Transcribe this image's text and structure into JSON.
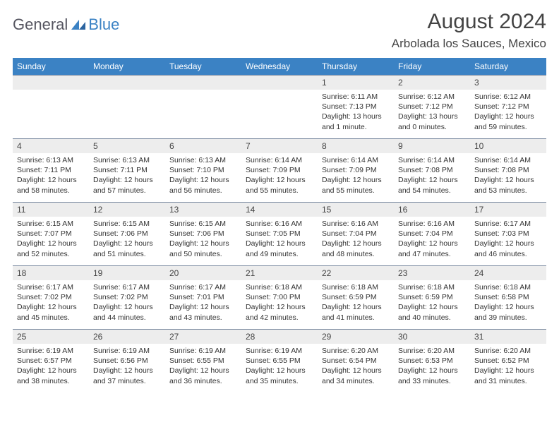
{
  "brand": {
    "part1": "General",
    "part2": "Blue"
  },
  "title": "August 2024",
  "location": "Arbolada los Sauces, Mexico",
  "colors": {
    "header_bg": "#3b82c4",
    "header_fg": "#ffffff",
    "daynum_bg": "#ededed",
    "cell_border": "#7a8aa0",
    "text": "#333333",
    "logo_gray": "#555560",
    "logo_blue": "#3b82c4"
  },
  "day_names": [
    "Sunday",
    "Monday",
    "Tuesday",
    "Wednesday",
    "Thursday",
    "Friday",
    "Saturday"
  ],
  "weeks": [
    [
      {
        "day": "",
        "lines": []
      },
      {
        "day": "",
        "lines": []
      },
      {
        "day": "",
        "lines": []
      },
      {
        "day": "",
        "lines": []
      },
      {
        "day": "1",
        "lines": [
          "Sunrise: 6:11 AM",
          "Sunset: 7:13 PM",
          "Daylight: 13 hours and 1 minute."
        ]
      },
      {
        "day": "2",
        "lines": [
          "Sunrise: 6:12 AM",
          "Sunset: 7:12 PM",
          "Daylight: 13 hours and 0 minutes."
        ]
      },
      {
        "day": "3",
        "lines": [
          "Sunrise: 6:12 AM",
          "Sunset: 7:12 PM",
          "Daylight: 12 hours and 59 minutes."
        ]
      }
    ],
    [
      {
        "day": "4",
        "lines": [
          "Sunrise: 6:13 AM",
          "Sunset: 7:11 PM",
          "Daylight: 12 hours and 58 minutes."
        ]
      },
      {
        "day": "5",
        "lines": [
          "Sunrise: 6:13 AM",
          "Sunset: 7:11 PM",
          "Daylight: 12 hours and 57 minutes."
        ]
      },
      {
        "day": "6",
        "lines": [
          "Sunrise: 6:13 AM",
          "Sunset: 7:10 PM",
          "Daylight: 12 hours and 56 minutes."
        ]
      },
      {
        "day": "7",
        "lines": [
          "Sunrise: 6:14 AM",
          "Sunset: 7:09 PM",
          "Daylight: 12 hours and 55 minutes."
        ]
      },
      {
        "day": "8",
        "lines": [
          "Sunrise: 6:14 AM",
          "Sunset: 7:09 PM",
          "Daylight: 12 hours and 55 minutes."
        ]
      },
      {
        "day": "9",
        "lines": [
          "Sunrise: 6:14 AM",
          "Sunset: 7:08 PM",
          "Daylight: 12 hours and 54 minutes."
        ]
      },
      {
        "day": "10",
        "lines": [
          "Sunrise: 6:14 AM",
          "Sunset: 7:08 PM",
          "Daylight: 12 hours and 53 minutes."
        ]
      }
    ],
    [
      {
        "day": "11",
        "lines": [
          "Sunrise: 6:15 AM",
          "Sunset: 7:07 PM",
          "Daylight: 12 hours and 52 minutes."
        ]
      },
      {
        "day": "12",
        "lines": [
          "Sunrise: 6:15 AM",
          "Sunset: 7:06 PM",
          "Daylight: 12 hours and 51 minutes."
        ]
      },
      {
        "day": "13",
        "lines": [
          "Sunrise: 6:15 AM",
          "Sunset: 7:06 PM",
          "Daylight: 12 hours and 50 minutes."
        ]
      },
      {
        "day": "14",
        "lines": [
          "Sunrise: 6:16 AM",
          "Sunset: 7:05 PM",
          "Daylight: 12 hours and 49 minutes."
        ]
      },
      {
        "day": "15",
        "lines": [
          "Sunrise: 6:16 AM",
          "Sunset: 7:04 PM",
          "Daylight: 12 hours and 48 minutes."
        ]
      },
      {
        "day": "16",
        "lines": [
          "Sunrise: 6:16 AM",
          "Sunset: 7:04 PM",
          "Daylight: 12 hours and 47 minutes."
        ]
      },
      {
        "day": "17",
        "lines": [
          "Sunrise: 6:17 AM",
          "Sunset: 7:03 PM",
          "Daylight: 12 hours and 46 minutes."
        ]
      }
    ],
    [
      {
        "day": "18",
        "lines": [
          "Sunrise: 6:17 AM",
          "Sunset: 7:02 PM",
          "Daylight: 12 hours and 45 minutes."
        ]
      },
      {
        "day": "19",
        "lines": [
          "Sunrise: 6:17 AM",
          "Sunset: 7:02 PM",
          "Daylight: 12 hours and 44 minutes."
        ]
      },
      {
        "day": "20",
        "lines": [
          "Sunrise: 6:17 AM",
          "Sunset: 7:01 PM",
          "Daylight: 12 hours and 43 minutes."
        ]
      },
      {
        "day": "21",
        "lines": [
          "Sunrise: 6:18 AM",
          "Sunset: 7:00 PM",
          "Daylight: 12 hours and 42 minutes."
        ]
      },
      {
        "day": "22",
        "lines": [
          "Sunrise: 6:18 AM",
          "Sunset: 6:59 PM",
          "Daylight: 12 hours and 41 minutes."
        ]
      },
      {
        "day": "23",
        "lines": [
          "Sunrise: 6:18 AM",
          "Sunset: 6:59 PM",
          "Daylight: 12 hours and 40 minutes."
        ]
      },
      {
        "day": "24",
        "lines": [
          "Sunrise: 6:18 AM",
          "Sunset: 6:58 PM",
          "Daylight: 12 hours and 39 minutes."
        ]
      }
    ],
    [
      {
        "day": "25",
        "lines": [
          "Sunrise: 6:19 AM",
          "Sunset: 6:57 PM",
          "Daylight: 12 hours and 38 minutes."
        ]
      },
      {
        "day": "26",
        "lines": [
          "Sunrise: 6:19 AM",
          "Sunset: 6:56 PM",
          "Daylight: 12 hours and 37 minutes."
        ]
      },
      {
        "day": "27",
        "lines": [
          "Sunrise: 6:19 AM",
          "Sunset: 6:55 PM",
          "Daylight: 12 hours and 36 minutes."
        ]
      },
      {
        "day": "28",
        "lines": [
          "Sunrise: 6:19 AM",
          "Sunset: 6:55 PM",
          "Daylight: 12 hours and 35 minutes."
        ]
      },
      {
        "day": "29",
        "lines": [
          "Sunrise: 6:20 AM",
          "Sunset: 6:54 PM",
          "Daylight: 12 hours and 34 minutes."
        ]
      },
      {
        "day": "30",
        "lines": [
          "Sunrise: 6:20 AM",
          "Sunset: 6:53 PM",
          "Daylight: 12 hours and 33 minutes."
        ]
      },
      {
        "day": "31",
        "lines": [
          "Sunrise: 6:20 AM",
          "Sunset: 6:52 PM",
          "Daylight: 12 hours and 31 minutes."
        ]
      }
    ]
  ]
}
